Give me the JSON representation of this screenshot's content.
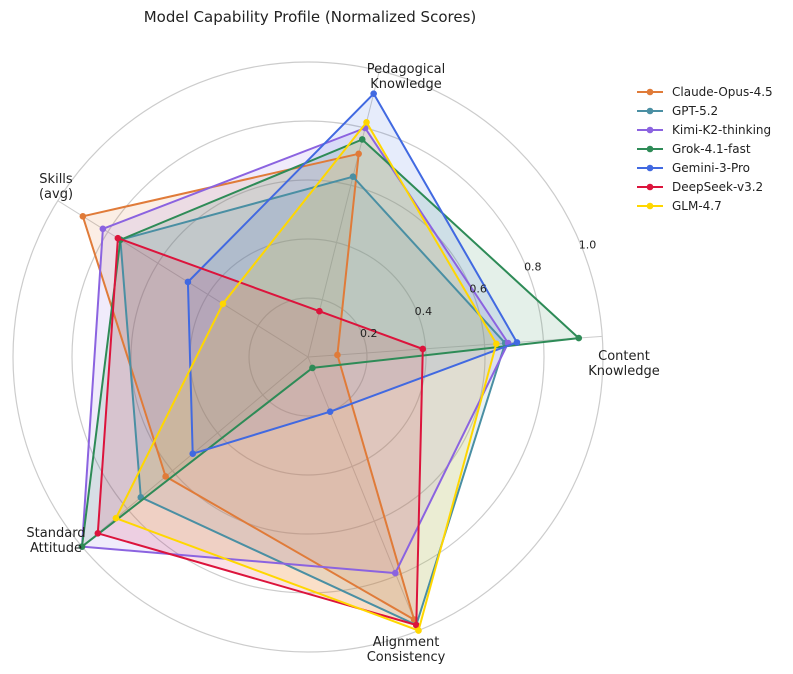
{
  "chart_data": {
    "type": "radar",
    "title": "Model Capability Profile (Normalized Scores)",
    "axes": [
      [
        "Content",
        "Knowledge"
      ],
      [
        "Pedagogical",
        "Knowledge"
      ],
      [
        "Skills",
        "(avg)"
      ],
      [
        "Standard",
        "Attitude"
      ],
      [
        "Alignment",
        "Consistency"
      ]
    ],
    "rlim": [
      0,
      1.0
    ],
    "ticks": [
      "0.2",
      "0.4",
      "0.6",
      "0.8",
      "1.0"
    ],
    "grid": true,
    "legend_position": "top-right",
    "series": [
      {
        "name": "Claude-Opus-4.5",
        "color": "#E07B39",
        "values": [
          0.1,
          0.71,
          0.9,
          0.63,
          0.96
        ]
      },
      {
        "name": "GPT-5.2",
        "color": "#4A8FA3",
        "values": [
          0.67,
          0.63,
          0.75,
          0.74,
          0.98
        ]
      },
      {
        "name": "Kimi-K2-thinking",
        "color": "#8B63E0",
        "values": [
          0.68,
          0.8,
          0.82,
          1.0,
          0.79
        ]
      },
      {
        "name": "Grok-4.1-fast",
        "color": "#2E8B57",
        "values": [
          0.92,
          0.76,
          0.75,
          1.0,
          0.04
        ]
      },
      {
        "name": "Gemini-3-Pro",
        "color": "#4169E1",
        "values": [
          0.71,
          0.92,
          0.48,
          0.51,
          0.2
        ]
      },
      {
        "name": "DeepSeek-v3.2",
        "color": "#DC143C",
        "values": [
          0.39,
          0.16,
          0.76,
          0.93,
          0.98
        ]
      },
      {
        "name": "GLM-4.7",
        "color": "#FFD700",
        "values": [
          0.64,
          0.82,
          0.34,
          0.85,
          1.0
        ]
      }
    ]
  }
}
